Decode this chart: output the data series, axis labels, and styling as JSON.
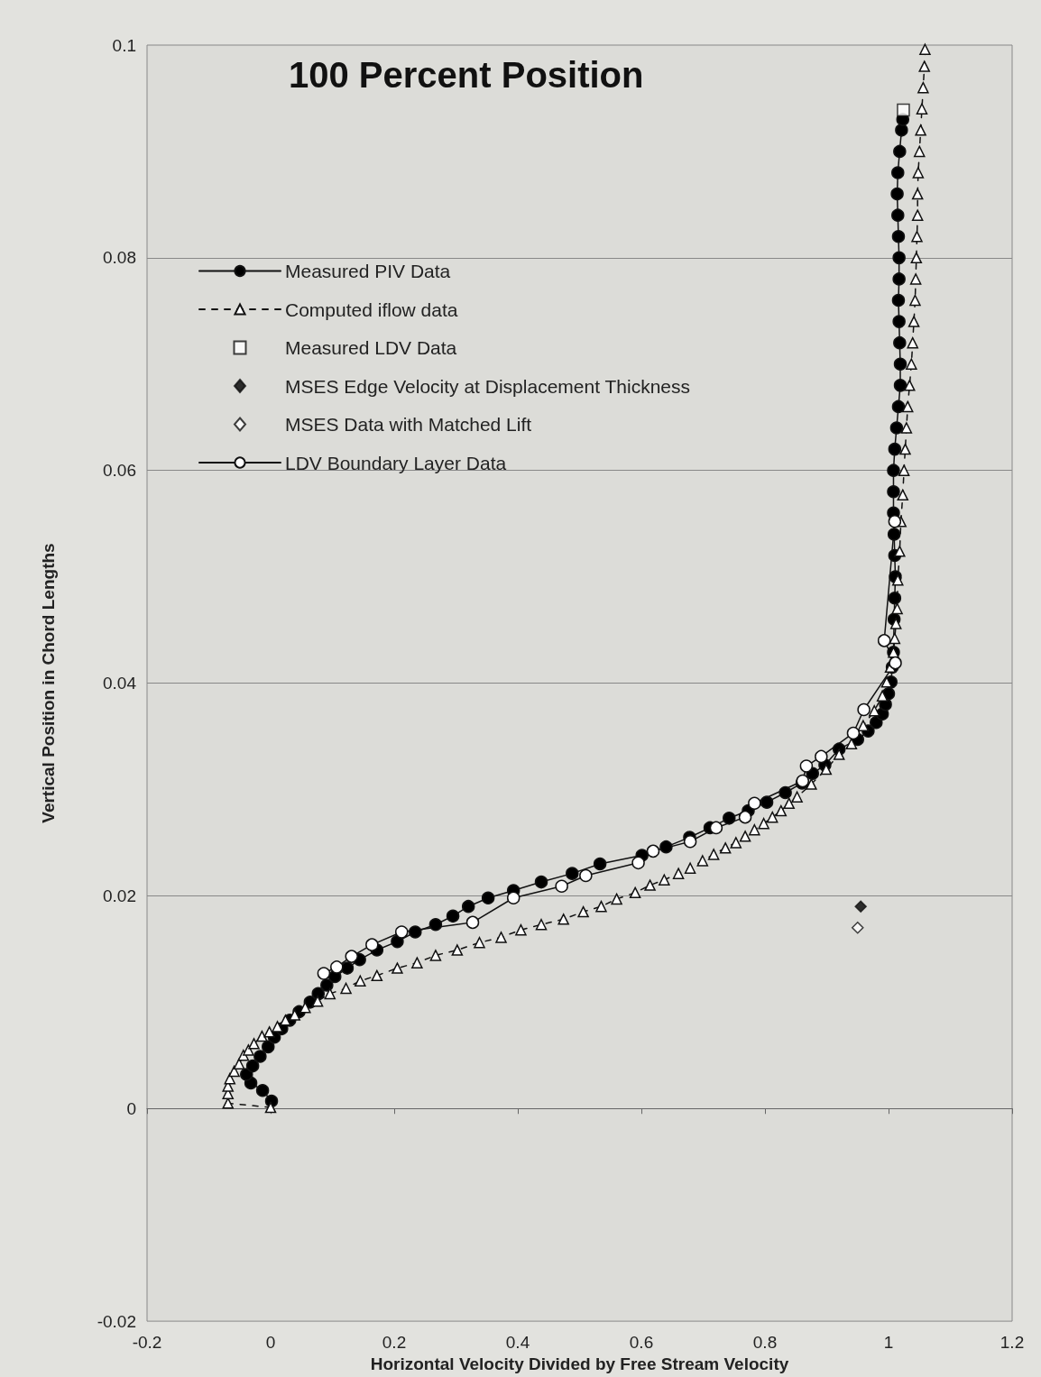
{
  "chart_data": {
    "type": "line",
    "title": "100 Percent Position",
    "xlabel": "Horizontal Velocity Divided by Free Stream Velocity",
    "ylabel": "Vertical Position in Chord Lengths",
    "xlim": [
      -0.2,
      1.2
    ],
    "xticks": [
      -0.2,
      0,
      0.2,
      0.4,
      0.6,
      0.8,
      1,
      1.2
    ],
    "ylim": [
      -0.02,
      0.1
    ],
    "yticks": [
      -0.02,
      0,
      0.02,
      0.04,
      0.06,
      0.08,
      0.1
    ],
    "grid": "y",
    "legend": "top left",
    "series": [
      {
        "name": "Measured PIV Data",
        "marker": "circle",
        "line_style": "solid",
        "color": "#000000",
        "x": [
          0.0015,
          -0.013,
          -0.032,
          -0.039,
          -0.029,
          -0.017,
          -0.004,
          0.006,
          0.018,
          0.031,
          0.046,
          0.064,
          0.077,
          0.091,
          0.104,
          0.124,
          0.144,
          0.172,
          0.205,
          0.234,
          0.267,
          0.295,
          0.32,
          0.352,
          0.393,
          0.438,
          0.488,
          0.533,
          0.601,
          0.64,
          0.678,
          0.711,
          0.742,
          0.773,
          0.803,
          0.833,
          0.86,
          0.877,
          0.897,
          0.92,
          0.95,
          0.967,
          0.98,
          0.99,
          0.995,
          1.0,
          1.004,
          1.006,
          1.008,
          1.009,
          1.01,
          1.011,
          1.01,
          1.009,
          1.008,
          1.008,
          1.008,
          1.01,
          1.013,
          1.016,
          1.019,
          1.019,
          1.018,
          1.017,
          1.016,
          1.017,
          1.017,
          1.016,
          1.015,
          1.014,
          1.015,
          1.018,
          1.021,
          1.023
        ],
        "values": [
          0.0007,
          0.0017,
          0.0024,
          0.0032,
          0.004,
          0.0049,
          0.0058,
          0.0067,
          0.0075,
          0.0083,
          0.0091,
          0.01,
          0.0108,
          0.0116,
          0.0124,
          0.0132,
          0.014,
          0.0149,
          0.0157,
          0.0166,
          0.0173,
          0.0181,
          0.019,
          0.0198,
          0.0205,
          0.0213,
          0.0221,
          0.023,
          0.0238,
          0.0246,
          0.0255,
          0.0264,
          0.0273,
          0.028,
          0.0288,
          0.0297,
          0.0306,
          0.0315,
          0.0323,
          0.0338,
          0.0347,
          0.0355,
          0.0363,
          0.0371,
          0.038,
          0.039,
          0.0401,
          0.0415,
          0.0429,
          0.046,
          0.048,
          0.05,
          0.052,
          0.054,
          0.056,
          0.058,
          0.06,
          0.062,
          0.064,
          0.066,
          0.068,
          0.07,
          0.072,
          0.074,
          0.076,
          0.078,
          0.08,
          0.082,
          0.084,
          0.086,
          0.088,
          0.09,
          0.092,
          0.093
        ]
      },
      {
        "name": "Computed iflow data",
        "marker": "triangle",
        "line_style": "dashed",
        "color": "#ffffff",
        "x": [
          0,
          -0.069,
          -0.069,
          -0.069,
          -0.066,
          -0.059,
          -0.051,
          -0.044,
          -0.036,
          -0.027,
          -0.014,
          -0.002,
          0.011,
          0.024,
          0.039,
          0.056,
          0.076,
          0.096,
          0.122,
          0.145,
          0.172,
          0.205,
          0.237,
          0.267,
          0.302,
          0.338,
          0.373,
          0.405,
          0.438,
          0.474,
          0.506,
          0.535,
          0.56,
          0.59,
          0.614,
          0.637,
          0.66,
          0.679,
          0.699,
          0.717,
          0.736,
          0.753,
          0.768,
          0.783,
          0.798,
          0.812,
          0.826,
          0.839,
          0.852,
          0.875,
          0.899,
          0.92,
          0.94,
          0.959,
          0.977,
          0.99,
          0.997,
          1.003,
          1.008,
          1.01,
          1.012,
          1.014,
          1.015,
          1.018,
          1.02,
          1.023,
          1.025,
          1.027,
          1.029,
          1.031,
          1.034,
          1.037,
          1.039,
          1.041,
          1.043,
          1.044,
          1.045,
          1.046,
          1.047,
          1.047,
          1.048,
          1.05,
          1.052,
          1.054,
          1.056,
          1.058,
          1.059
        ],
        "values": [
          0.0001,
          0.0005,
          0.0014,
          0.0021,
          0.0028,
          0.0035,
          0.0042,
          0.005,
          0.0055,
          0.0061,
          0.0068,
          0.0072,
          0.0077,
          0.0083,
          0.0088,
          0.0095,
          0.0101,
          0.0108,
          0.0113,
          0.012,
          0.0125,
          0.0132,
          0.0137,
          0.0144,
          0.0149,
          0.0156,
          0.0161,
          0.0168,
          0.0173,
          0.0178,
          0.0185,
          0.019,
          0.0197,
          0.0203,
          0.021,
          0.0215,
          0.0221,
          0.0226,
          0.0233,
          0.0239,
          0.0245,
          0.025,
          0.0256,
          0.0262,
          0.0268,
          0.0274,
          0.028,
          0.0287,
          0.0293,
          0.0305,
          0.0319,
          0.0333,
          0.0343,
          0.036,
          0.0374,
          0.0388,
          0.0401,
          0.0415,
          0.0429,
          0.0442,
          0.0456,
          0.047,
          0.0497,
          0.0524,
          0.0552,
          0.0577,
          0.06,
          0.062,
          0.064,
          0.066,
          0.068,
          0.07,
          0.072,
          0.074,
          0.076,
          0.078,
          0.08,
          0.082,
          0.084,
          0.086,
          0.088,
          0.09,
          0.092,
          0.094,
          0.096,
          0.098,
          0.0996
        ]
      },
      {
        "name": "Measured LDV Data",
        "type": "scatter",
        "marker": "square",
        "color": "#ffffff",
        "x": [
          1.024
        ],
        "values": [
          0.0939
        ]
      },
      {
        "name": "MSES Edge Velocity at Displacement Thickness",
        "type": "scatter",
        "marker": "diamond",
        "color": "#000000",
        "x": [
          0.955
        ],
        "values": [
          0.019
        ]
      },
      {
        "name": "MSES Data with Matched Lift",
        "type": "scatter",
        "marker": "diamond",
        "color": "#ffffff",
        "x": [
          0.95
        ],
        "values": [
          0.017
        ]
      },
      {
        "name": "LDV Boundary Layer Data",
        "marker": "circle",
        "line_style": "solid",
        "color": "#ffffff",
        "x": [
          0.086,
          0.107,
          0.131,
          0.164,
          0.212,
          0.327,
          0.393,
          0.471,
          0.51,
          0.595,
          0.619,
          0.679,
          0.721,
          0.768,
          0.783,
          0.861,
          0.867,
          0.891,
          0.943,
          0.96,
          1.011,
          0.993,
          1.01
        ],
        "values": [
          0.0127,
          0.0133,
          0.0143,
          0.0154,
          0.0166,
          0.0175,
          0.0198,
          0.0209,
          0.0219,
          0.0231,
          0.0242,
          0.0251,
          0.0264,
          0.0274,
          0.0287,
          0.0308,
          0.0322,
          0.0331,
          0.0353,
          0.0375,
          0.0419,
          0.044,
          0.0552
        ]
      }
    ]
  }
}
